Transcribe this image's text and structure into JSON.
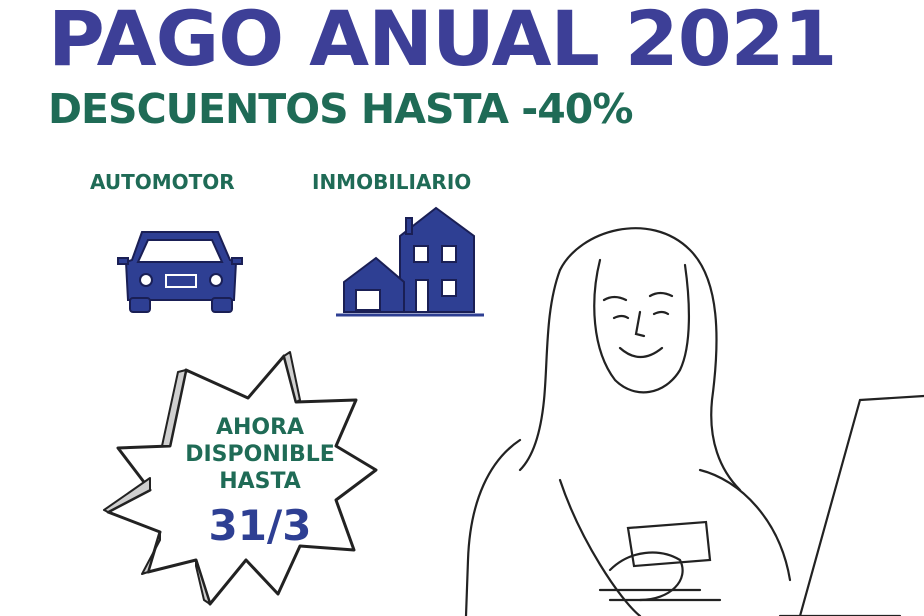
{
  "header": {
    "title": "PAGO ANUAL 2021",
    "subtitle": "DESCUENTOS HASTA -40%"
  },
  "categories": [
    {
      "label": "AUTOMOTOR",
      "icon": "car-icon"
    },
    {
      "label": "INMOBILIARIO",
      "icon": "house-icon"
    }
  ],
  "badge": {
    "line1": "AHORA",
    "line2": "DISPONIBLE",
    "line3": "HASTA",
    "date": "31/3"
  },
  "colors": {
    "title_blue": "#3d3f97",
    "accent_green": "#1f6b56",
    "icon_blue": "#2e3f93"
  }
}
